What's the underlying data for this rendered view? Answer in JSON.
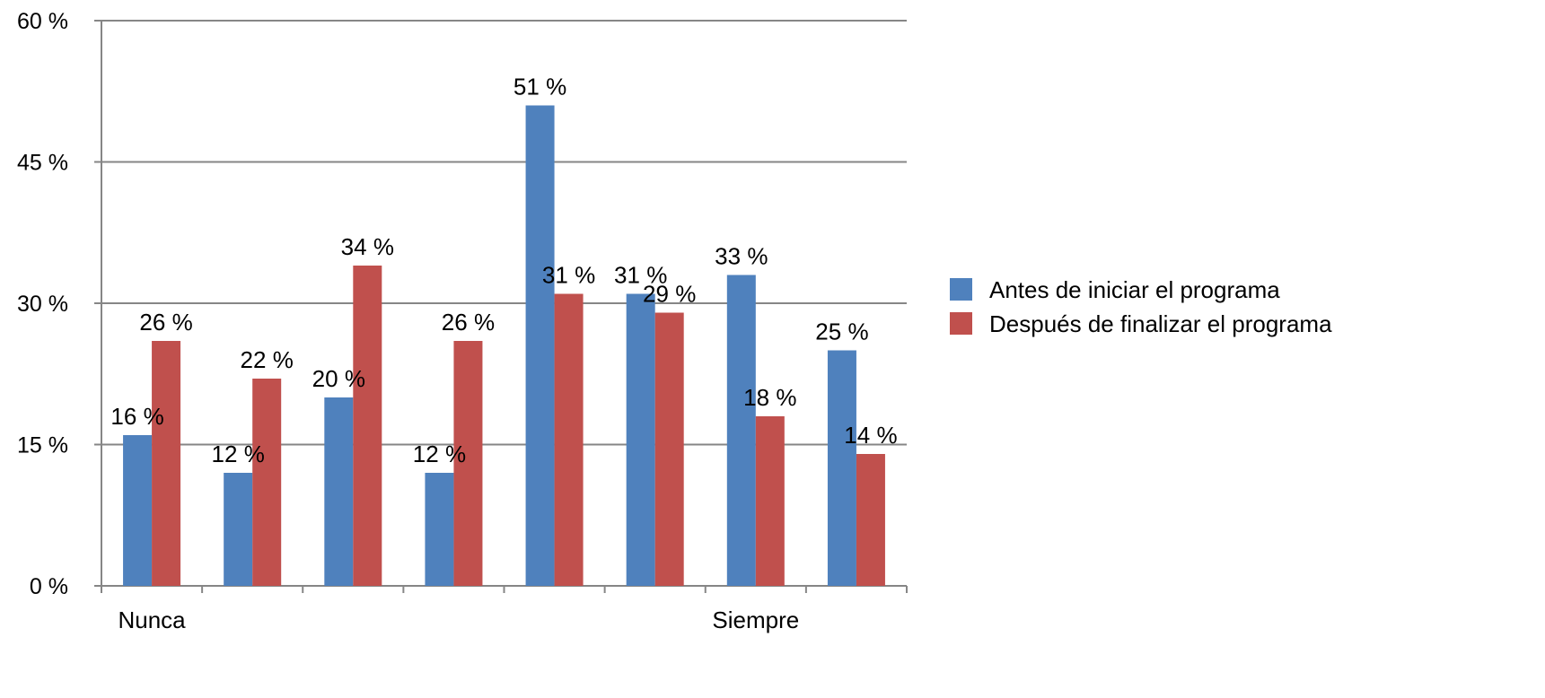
{
  "chart_data": {
    "type": "bar",
    "title": "",
    "xlabel": "",
    "ylabel": "",
    "ylim": [
      0,
      60
    ],
    "yticks": [
      0,
      15,
      30,
      45,
      60
    ],
    "ytick_labels": [
      "0 %",
      "15 %",
      "30 %",
      "45 %",
      "60 %"
    ],
    "categories": [
      "Nunca",
      "",
      "",
      "",
      "",
      "",
      "Siempre",
      ""
    ],
    "grid": true,
    "legend_position": "right",
    "series": [
      {
        "name": "Antes de iniciar el programa",
        "color": "#4F81BD",
        "values": [
          16,
          12,
          20,
          12,
          51,
          31,
          33,
          25
        ],
        "labels": [
          "16 %",
          "12 %",
          "20 %",
          "12 %",
          "51 %",
          "31 %",
          "33 %",
          "25 %"
        ]
      },
      {
        "name": "Después de finalizar el programa",
        "color": "#C0504D",
        "values": [
          26,
          22,
          34,
          26,
          31,
          29,
          18,
          14
        ],
        "labels": [
          "26 %",
          "22 %",
          "34 %",
          "26 %",
          "31 %",
          "29 %",
          "18 %",
          "14 %"
        ]
      }
    ]
  }
}
